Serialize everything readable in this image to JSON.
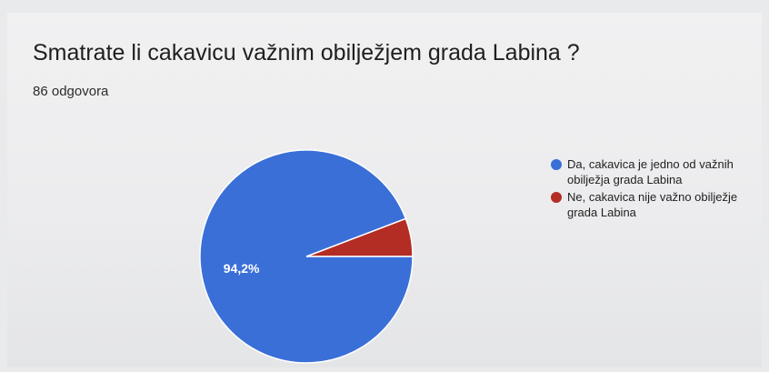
{
  "question": {
    "title": "Smatrate li cakavicu važnim obilježjem grada Labina ?",
    "responses": "86 odgovora"
  },
  "chart_data": {
    "type": "pie",
    "legend_position": "right",
    "slices": [
      {
        "label": "Da, cakavica je jedno od važnih obilježja grada Labina",
        "value": 94.2,
        "color": "#3a6fd8",
        "data_label": "94,2%"
      },
      {
        "label": "Ne, cakavica nije važno obilježje grada Labina",
        "value": 5.8,
        "color": "#b32d24"
      }
    ]
  }
}
